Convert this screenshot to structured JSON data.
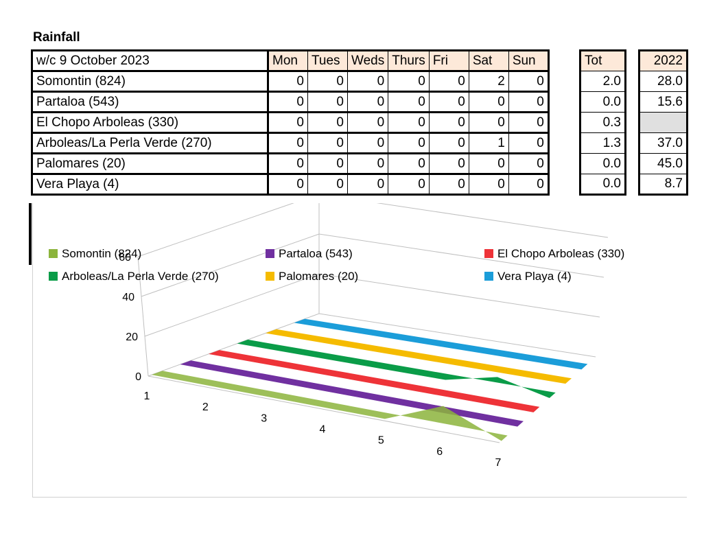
{
  "title": "Rainfall",
  "table": {
    "week_label": "w/c 9 October 2023",
    "days": [
      "Mon",
      "Tues",
      "Weds",
      "Thurs",
      "Fri",
      "Sat",
      "Sun"
    ],
    "tot_header": "Tot",
    "year_header": "2022",
    "rows": [
      {
        "name": "Somontin (824)",
        "days": [
          "0",
          "0",
          "0",
          "0",
          "0",
          "2",
          "0"
        ],
        "tot": "2.0",
        "year": "28.0"
      },
      {
        "name": "Partaloa (543)",
        "days": [
          "0",
          "0",
          "0",
          "0",
          "0",
          "0",
          "0"
        ],
        "tot": "0.0",
        "year": "15.6"
      },
      {
        "name": "El Chopo Arboleas (330)",
        "days": [
          "0",
          "0",
          "0",
          "0",
          "0",
          "0",
          "0"
        ],
        "tot": "0.3",
        "year": ""
      },
      {
        "name": "Arboleas/La Perla Verde (270)",
        "days": [
          "0",
          "0",
          "0",
          "0",
          "0",
          "1",
          "0"
        ],
        "tot": "1.3",
        "year": "37.0"
      },
      {
        "name": "Palomares (20)",
        "days": [
          "0",
          "0",
          "0",
          "0",
          "0",
          "0",
          "0"
        ],
        "tot": "0.0",
        "year": "45.0"
      },
      {
        "name": "Vera Playa (4)",
        "days": [
          "0",
          "0",
          "0",
          "0",
          "0",
          "0",
          "0"
        ],
        "tot": "0.0",
        "year": "8.7"
      }
    ]
  },
  "chart_data": {
    "type": "area",
    "variant": "3d",
    "x": [
      "1",
      "2",
      "3",
      "4",
      "5",
      "6",
      "7"
    ],
    "y_ticks": [
      "0",
      "20",
      "40",
      "60"
    ],
    "ylim": [
      0,
      60
    ],
    "grid": true,
    "legend_position": "bottom",
    "series": [
      {
        "name": "Somontin (824)",
        "color": "#8cb43c",
        "values": [
          0,
          0,
          0,
          0,
          0,
          2,
          0
        ]
      },
      {
        "name": "Partaloa (543)",
        "color": "#7030a0",
        "values": [
          0,
          0,
          0,
          0,
          0,
          0,
          0
        ]
      },
      {
        "name": "El Chopo Arboleas (330)",
        "color": "#ee3338",
        "values": [
          0,
          0,
          0,
          0,
          0,
          0,
          0
        ]
      },
      {
        "name": "Arboleas/La Perla Verde (270)",
        "color": "#0a9c48",
        "values": [
          0,
          0,
          0,
          0,
          0,
          1,
          0
        ]
      },
      {
        "name": "Palomares (20)",
        "color": "#f5bb00",
        "values": [
          0,
          0,
          0,
          0,
          0,
          0,
          0
        ]
      },
      {
        "name": "Vera Playa (4)",
        "color": "#1b9dd9",
        "values": [
          0,
          0,
          0,
          0,
          0,
          0,
          0
        ]
      }
    ]
  }
}
